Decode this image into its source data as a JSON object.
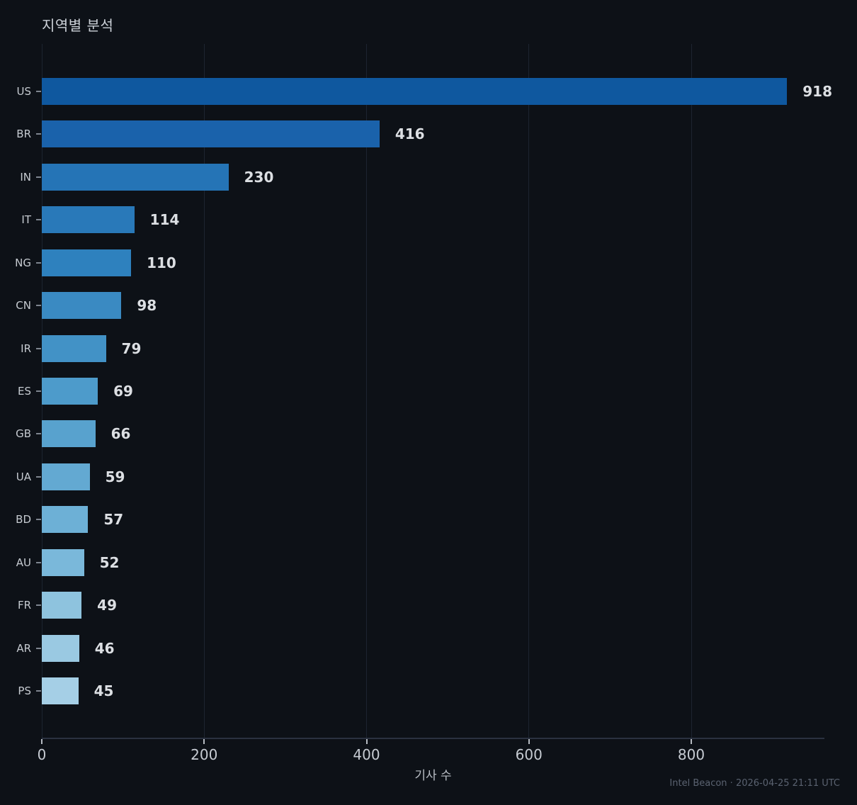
{
  "title": "지역별 분석",
  "footer": {
    "text": "Intel Beacon · 2026-04-25 21:11 UTC"
  },
  "chart_data": {
    "type": "bar",
    "orientation": "horizontal",
    "title": "지역별 분석",
    "xlabel": "기사 수",
    "ylabel": "",
    "categories": [
      "US",
      "BR",
      "IN",
      "IT",
      "NG",
      "CN",
      "IR",
      "ES",
      "GB",
      "UA",
      "BD",
      "AU",
      "FR",
      "AR",
      "PS"
    ],
    "values": [
      918,
      416,
      230,
      114,
      110,
      98,
      79,
      69,
      66,
      59,
      57,
      52,
      49,
      46,
      45
    ],
    "bar_colors": [
      "#0f589f",
      "#1a62ab",
      "#2574b6",
      "#2979b9",
      "#2e81be",
      "#3a8ac2",
      "#4292c6",
      "#4d9bcb",
      "#58a2ce",
      "#63a9d2",
      "#6db0d6",
      "#7ab8da",
      "#8ec3de",
      "#9ac9e2",
      "#a5cfe6"
    ],
    "xticks": [
      0,
      200,
      400,
      600,
      800
    ],
    "xlim": [
      0,
      964
    ],
    "grid": "vertical-only",
    "legend": null,
    "value_labels_shown": true,
    "background_color": "#0d1117"
  }
}
